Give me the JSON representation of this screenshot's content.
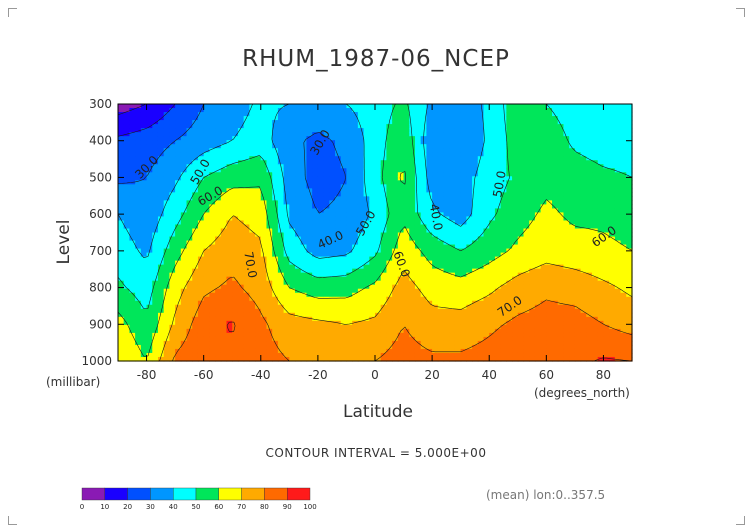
{
  "chart_data": {
    "type": "heatmap",
    "title": "RHUM_1987-06_NCEP",
    "xlabel": "Latitude",
    "ylabel": "Level",
    "x_unit": "(degrees_north)",
    "y_unit": "(millibar)",
    "xlim": [
      -90,
      90
    ],
    "ylim": [
      1000,
      300
    ],
    "x_ticks": [
      "-80",
      "-60",
      "-40",
      "-20",
      "0",
      "20",
      "40",
      "60",
      "80"
    ],
    "x_tick_values": [
      -80,
      -60,
      -40,
      -20,
      0,
      20,
      40,
      60,
      80
    ],
    "y_ticks": [
      "300",
      "400",
      "500",
      "600",
      "700",
      "800",
      "900",
      "1000"
    ],
    "y_tick_values": [
      300,
      400,
      500,
      600,
      700,
      800,
      900,
      1000
    ],
    "latitudes": [
      -90,
      -80,
      -70,
      -60,
      -50,
      -40,
      -30,
      -20,
      -10,
      0,
      10,
      20,
      30,
      40,
      50,
      60,
      70,
      80,
      90
    ],
    "levels": [
      300,
      400,
      500,
      600,
      700,
      800,
      900,
      1000
    ],
    "values": [
      [
        5,
        10,
        20,
        30,
        35,
        42,
        40,
        36,
        40,
        45,
        52,
        38,
        35,
        42,
        58,
        50,
        45,
        40,
        40
      ],
      [
        22,
        25,
        30,
        35,
        40,
        45,
        32,
        28,
        32,
        45,
        58,
        32,
        30,
        42,
        55,
        56,
        48,
        45,
        45
      ],
      [
        28,
        30,
        38,
        50,
        56,
        58,
        35,
        26,
        30,
        46,
        62,
        35,
        35,
        45,
        52,
        57,
        55,
        52,
        50
      ],
      [
        40,
        33,
        46,
        60,
        70,
        66,
        38,
        30,
        32,
        42,
        58,
        42,
        35,
        48,
        56,
        62,
        58,
        58,
        56
      ],
      [
        45,
        38,
        56,
        70,
        76,
        72,
        46,
        36,
        38,
        48,
        66,
        56,
        50,
        56,
        62,
        66,
        64,
        62,
        60
      ],
      [
        52,
        45,
        66,
        78,
        82,
        76,
        60,
        55,
        56,
        62,
        74,
        66,
        64,
        68,
        74,
        78,
        76,
        72,
        68
      ],
      [
        64,
        52,
        72,
        86,
        91,
        82,
        74,
        72,
        70,
        72,
        80,
        74,
        74,
        78,
        82,
        84,
        84,
        80,
        76
      ],
      [
        70,
        60,
        82,
        88,
        88,
        84,
        80,
        78,
        78,
        80,
        84,
        82,
        82,
        84,
        88,
        88,
        88,
        91,
        90
      ]
    ],
    "contour_labels": [
      "30.0",
      "50.0",
      "60.0",
      "70.0",
      "30.0",
      "40.0",
      "50.0",
      "60.0",
      "40.0",
      "50.0",
      "60.0",
      "70.0"
    ],
    "contour_interval_text": "CONTOUR INTERVAL = 5.000E+00",
    "colorbar_ticks": [
      "0",
      "10",
      "20",
      "30",
      "40",
      "50",
      "60",
      "70",
      "80",
      "90",
      "100"
    ],
    "colorbar_colors": [
      "#8a1ab4",
      "#1a00ff",
      "#0050ff",
      "#0096ff",
      "#00ffff",
      "#00e65a",
      "#ffff00",
      "#ffaa00",
      "#ff6a00",
      "#ff1a1a"
    ],
    "grid": false
  },
  "footer": {
    "mean_label": "(mean) lon:0..357.5"
  }
}
